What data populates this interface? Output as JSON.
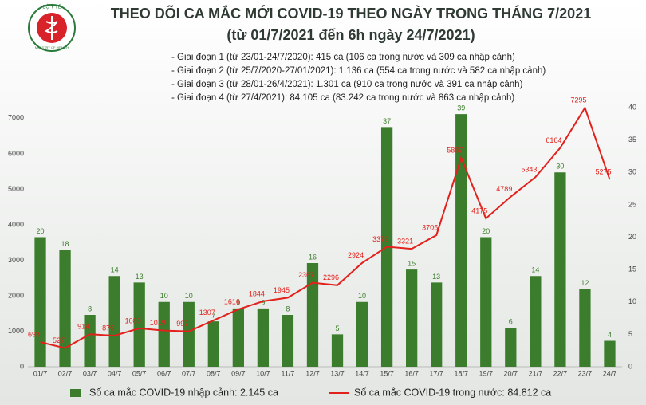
{
  "chart_data": {
    "type": "combo",
    "title": "THEO DÕI CA MẮC MỚI COVID-19 THEO NGÀY TRONG THÁNG 7/2021",
    "subtitle": "(từ 01/7/2021 đến 6h ngày 24/7/2021)",
    "logo": {
      "top": "BỘ Y TẾ",
      "bottom": "MINISTRY OF HEALTH"
    },
    "notes": [
      "- Giai đoạn 1 (từ 23/01-24/7/2020): 415 ca (106 ca trong nước và 309 ca nhập cảnh)",
      "- Giai đoạn 2 (từ 25/7/2020-27/01/2021): 1.136 ca (554 ca trong nước và 582 ca nhập cảnh)",
      "- Giai đoạn 3 (từ 28/01-26/4/2021): 1.301 ca (910 ca trong nước và 391 ca nhập cảnh)",
      "- Giai đoạn 4 (từ 27/4/2021): 84.105 ca (83.242 ca trong nước và 863 ca nhập cảnh)"
    ],
    "categories": [
      "01/7",
      "02/7",
      "03/7",
      "04/7",
      "05/7",
      "06/7",
      "07/7",
      "08/7",
      "09/7",
      "10/7",
      "11/7",
      "12/7",
      "13/7",
      "14/7",
      "15/7",
      "16/7",
      "17/7",
      "18/7",
      "19/7",
      "20/7",
      "21/7",
      "22/7",
      "23/7",
      "24/7"
    ],
    "series": [
      {
        "name": "Số ca mắc COVID-19 nhập cảnh: 2.145 ca",
        "type": "bar",
        "axis": "y2",
        "color": "#3b7d2c",
        "values": [
          20,
          18,
          8,
          14,
          13,
          10,
          10,
          7,
          9,
          9,
          8,
          16,
          5,
          10,
          37,
          15,
          13,
          39,
          20,
          6,
          14,
          30,
          12,
          4
        ]
      },
      {
        "name": "Số ca mắc COVID-19 trong nước: 84.812 ca",
        "type": "line",
        "color": "#e3211c",
        "values": [
          693,
          527,
          914,
          876,
          1080,
          1019,
          997,
          1307,
          1616,
          1844,
          1945,
          2367,
          2296,
          2924,
          3379,
          3321,
          3705,
          5887,
          4175,
          4789,
          5343,
          6164,
          7295,
          5275
        ]
      }
    ],
    "ylim": [
      0,
      7300
    ],
    "yticks": [
      0,
      1000,
      2000,
      3000,
      4000,
      5000,
      6000,
      7000
    ],
    "y2lim": [
      0,
      40
    ],
    "y2ticks": [
      0,
      5,
      10,
      15,
      20,
      25,
      30,
      35,
      40
    ],
    "grid": false
  }
}
